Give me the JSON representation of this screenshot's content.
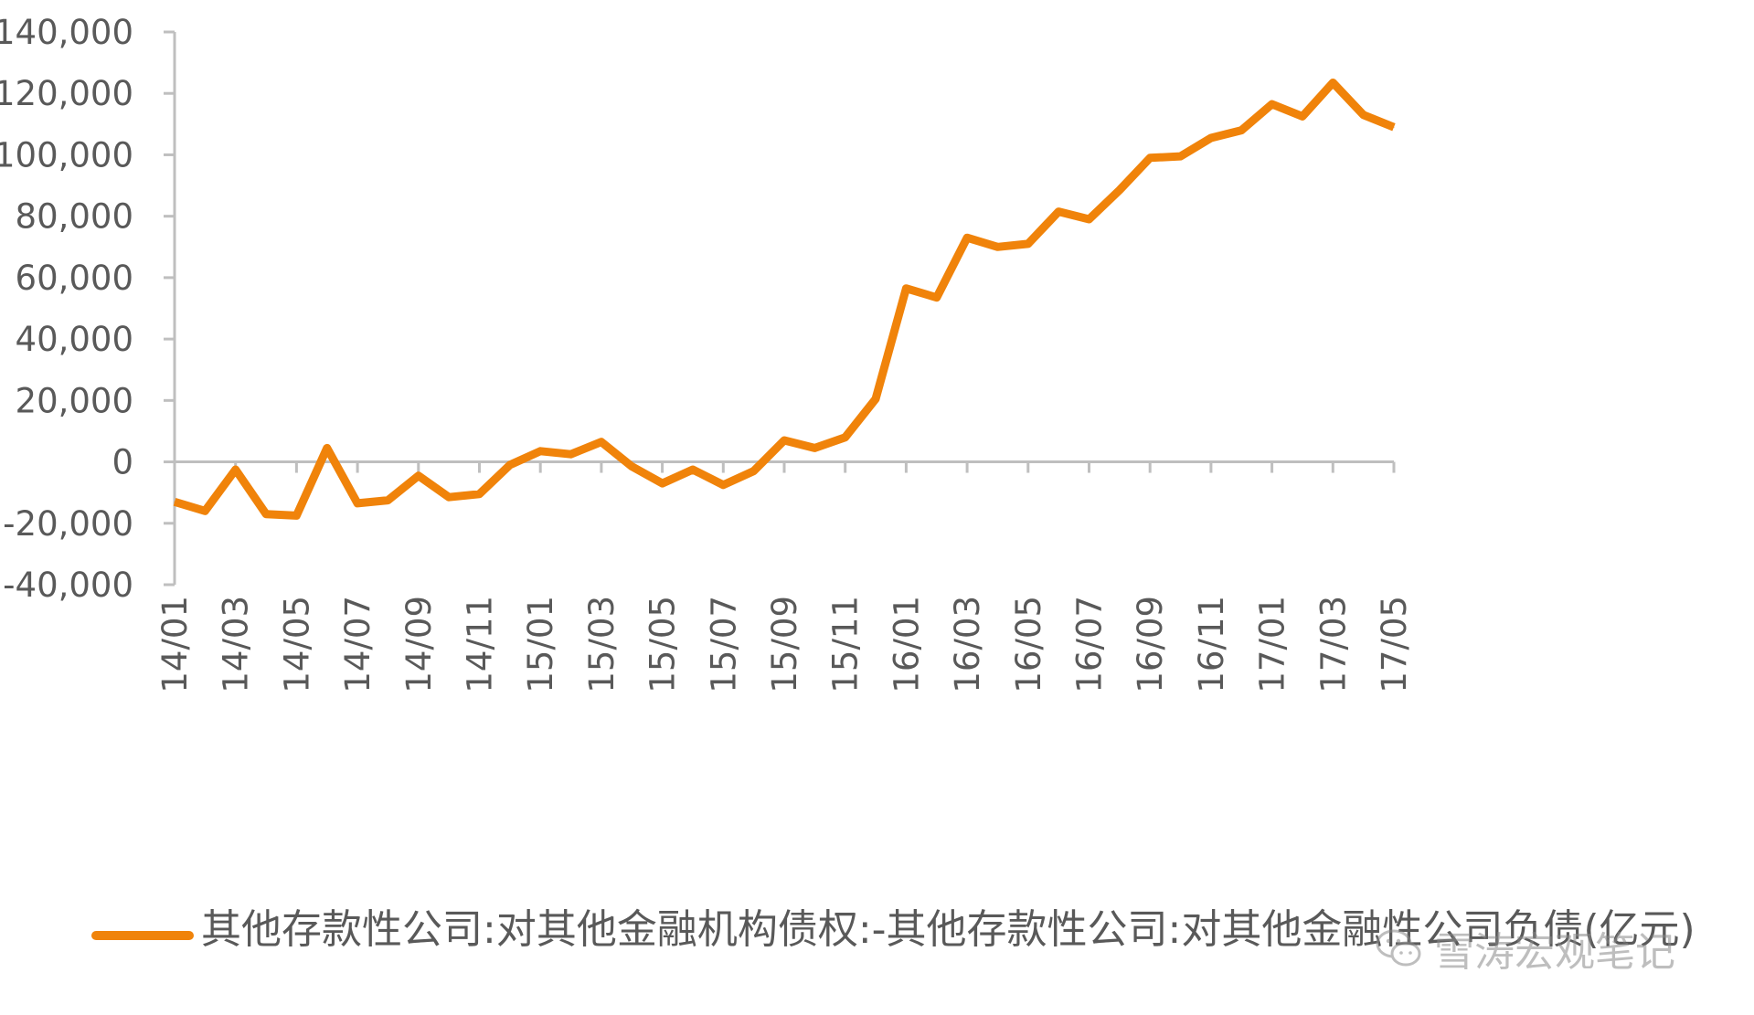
{
  "chart_data": {
    "type": "line",
    "title": "",
    "xlabel": "",
    "ylabel": "",
    "ylim": [
      -40000,
      140000
    ],
    "yticks": [
      "140,000",
      "120,000",
      "100,000",
      "80,000",
      "60,000",
      "40,000",
      "20,000",
      "0",
      "-20,000",
      "-40,000"
    ],
    "ytick_values": [
      140000,
      120000,
      100000,
      80000,
      60000,
      40000,
      20000,
      0,
      -20000,
      -40000
    ],
    "x": [
      "14/01",
      "14/02",
      "14/03",
      "14/04",
      "14/05",
      "14/06",
      "14/07",
      "14/08",
      "14/09",
      "14/10",
      "14/11",
      "14/12",
      "15/01",
      "15/02",
      "15/03",
      "15/04",
      "15/05",
      "15/06",
      "15/07",
      "15/08",
      "15/09",
      "15/10",
      "15/11",
      "15/12",
      "16/01",
      "16/02",
      "16/03",
      "16/04",
      "16/05",
      "16/06",
      "16/07",
      "16/08",
      "16/09",
      "16/10",
      "16/11",
      "16/12",
      "17/01",
      "17/02",
      "17/03",
      "17/04",
      "17/05"
    ],
    "xtick_labels": [
      "14/01",
      "14/03",
      "14/05",
      "14/07",
      "14/09",
      "14/11",
      "15/01",
      "15/03",
      "15/05",
      "15/07",
      "15/09",
      "15/11",
      "16/01",
      "16/03",
      "16/05",
      "16/07",
      "16/09",
      "16/11",
      "17/01",
      "17/03",
      "17/05"
    ],
    "series": [
      {
        "name": "其他存款性公司:对其他金融机构债权:-其他存款性公司:对其他金融性公司负债(亿元)",
        "color": "#F0830A",
        "values": [
          -13000,
          -16000,
          -2500,
          -17000,
          -17500,
          4500,
          -13500,
          -12500,
          -4500,
          -11500,
          -10500,
          -1000,
          3500,
          2500,
          6500,
          -1500,
          -7000,
          -2500,
          -7500,
          -3000,
          7000,
          4500,
          8000,
          20500,
          56500,
          53500,
          73000,
          70000,
          71000,
          81500,
          79000,
          88500,
          99000,
          99500,
          105500,
          108000,
          116500,
          112500,
          123500,
          113000,
          109000
        ]
      }
    ],
    "grid": false,
    "legend_position": "bottom"
  },
  "colors": {
    "line": "#F0830A",
    "axis": "#BFBFBF",
    "text": "#595959"
  },
  "watermark": {
    "icon": "wechat-icon",
    "text": "雪涛宏观笔记"
  }
}
